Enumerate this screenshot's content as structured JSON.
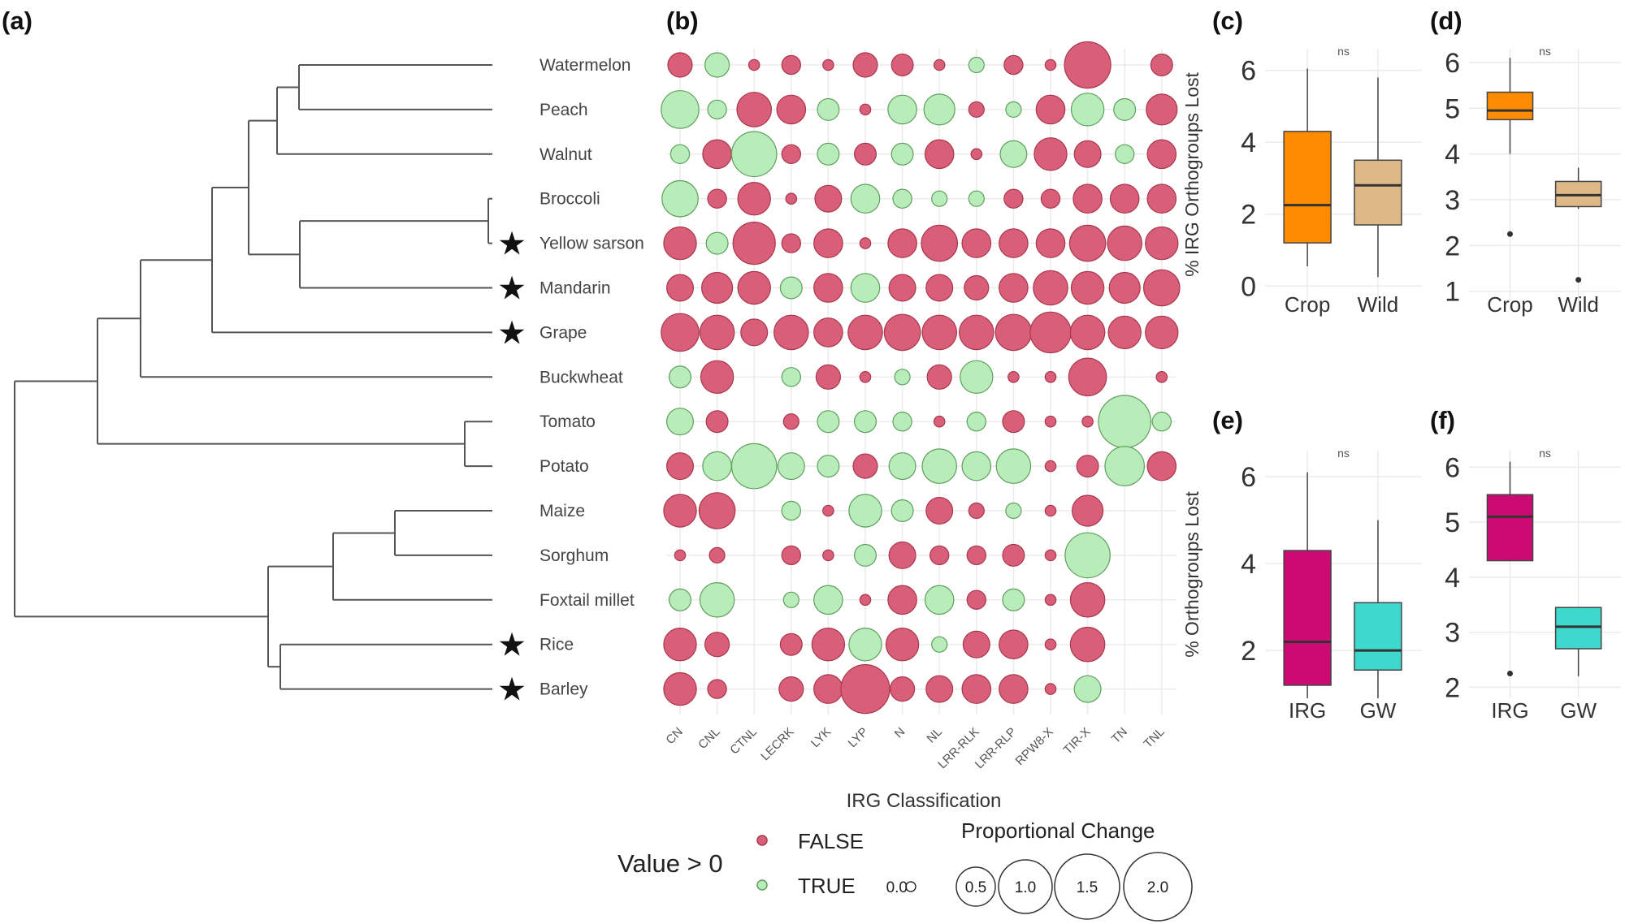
{
  "labels": {
    "a": "(a)",
    "b": "(b)",
    "c": "(c)",
    "d": "(d)",
    "e": "(e)",
    "f": "(f)"
  },
  "colors": {
    "false_fill": "#d95f78",
    "false_stroke": "#a8384f",
    "true_fill": "#b8ecb8",
    "true_stroke": "#5f9f5f",
    "crop": "#ff8c00",
    "wild": "#deb887",
    "irg": "#cc0a73",
    "gw": "#3dd9cf",
    "tree": "#555555"
  },
  "chart_data": [
    {
      "type": "dendrogram",
      "panel": "(a)",
      "leaves": [
        "Watermelon",
        "Peach",
        "Walnut",
        "Broccoli",
        "Yellow sarson",
        "Mandarin",
        "Grape",
        "Buckwheat",
        "Tomato",
        "Potato",
        "Maize",
        "Sorghum",
        "Foxtail millet",
        "Rice",
        "Barley"
      ],
      "starred": [
        "Yellow sarson",
        "Mandarin",
        "Grape",
        "Rice",
        "Barley"
      ],
      "star_symbol": "★"
    },
    {
      "type": "scatter",
      "panel": "(b)",
      "xlabel": "IRG Classification",
      "categories": [
        "CN",
        "CNL",
        "CTNL",
        "LECRK",
        "LYK",
        "LYP",
        "N",
        "NL",
        "LRR-RLK",
        "LRR-RLP",
        "RPW8-X",
        "TIR-X",
        "TN",
        "TNL"
      ],
      "rows": [
        "Watermelon",
        "Peach",
        "Walnut",
        "Broccoli",
        "Yellow sarson",
        "Mandarin",
        "Grape",
        "Buckwheat",
        "Tomato",
        "Potato",
        "Maize",
        "Sorghum",
        "Foxtail millet",
        "Rice",
        "Barley"
      ],
      "size_legend_title": "Proportional Change",
      "size_legend": [
        {
          "label": "0.0",
          "value": 0.0
        },
        {
          "label": "0.5",
          "value": 0.5
        },
        {
          "label": "1.0",
          "value": 1.0
        },
        {
          "label": "1.5",
          "value": 1.5
        },
        {
          "label": "2.0",
          "value": 2.0
        }
      ],
      "color_legend_title": "Value > 0",
      "color_legend": [
        "FALSE",
        "TRUE"
      ],
      "points": [
        [
          "F0.25",
          "T0.25",
          "F0.05",
          "F0.15",
          "F0.05",
          "F0.25",
          "F0.2",
          "F0.05",
          "T0.1",
          "F0.15",
          "F0.05",
          "F0.9",
          "",
          "F0.2"
        ],
        [
          "T0.6",
          "T0.15",
          "F0.5",
          "F0.35",
          "T0.2",
          "F0.05",
          "T0.35",
          "T0.4",
          "F0.1",
          "T0.1",
          "F0.35",
          "T0.45",
          "T0.2",
          "F0.4"
        ],
        [
          "T0.15",
          "F0.35",
          "T0.85",
          "F0.15",
          "T0.2",
          "F0.2",
          "T0.2",
          "F0.35",
          "F0.05",
          "T0.3",
          "F0.45",
          "F0.3",
          "T0.15",
          "F0.35"
        ],
        [
          "T0.55",
          "F0.15",
          "F0.45",
          "F0.05",
          "F0.3",
          "T0.35",
          "T0.15",
          "T0.1",
          "T0.1",
          "F0.15",
          "F0.15",
          "F0.35",
          "F0.35",
          "F0.35"
        ],
        [
          "F0.45",
          "T0.2",
          "F0.75",
          "F0.15",
          "F0.35",
          "F0.05",
          "F0.35",
          "F0.55",
          "F0.35",
          "F0.35",
          "F0.35",
          "F0.55",
          "F0.5",
          "F0.45"
        ],
        [
          "F0.3",
          "F0.4",
          "F0.45",
          "T0.2",
          "F0.35",
          "T0.35",
          "F0.3",
          "F0.3",
          "F0.25",
          "F0.35",
          "F0.5",
          "F0.45",
          "F0.4",
          "F0.55"
        ],
        [
          "F0.6",
          "F0.5",
          "F0.3",
          "F0.5",
          "F0.35",
          "F0.5",
          "F0.55",
          "F0.5",
          "F0.5",
          "F0.55",
          "F0.7",
          "F0.5",
          "F0.45",
          "F0.45"
        ],
        [
          "T0.2",
          "F0.45",
          "",
          "T0.15",
          "F0.25",
          "F0.05",
          "T0.1",
          "F0.25",
          "T0.45",
          "F0.05",
          "F0.05",
          "F0.6",
          "",
          "F0.05"
        ],
        [
          "T0.3",
          "F0.2",
          "",
          "F0.1",
          "T0.2",
          "T0.2",
          "T0.15",
          "F0.05",
          "T0.15",
          "F0.2",
          "F0.05",
          "F0.05",
          "T1.15",
          "T0.15"
        ],
        [
          "F0.3",
          "T0.35",
          "T0.85",
          "T0.3",
          "T0.2",
          "F0.25",
          "T0.3",
          "T0.5",
          "T0.35",
          "T0.5",
          "F0.05",
          "F0.2",
          "T0.65",
          "F0.35"
        ],
        [
          "F0.45",
          "F0.55",
          "",
          "T0.15",
          "F0.05",
          "T0.45",
          "T0.2",
          "F0.3",
          "F0.1",
          "T0.1",
          "F0.05",
          "F0.4",
          "",
          ""
        ],
        [
          "F0.05",
          "F0.1",
          "",
          "F0.15",
          "F0.05",
          "T0.2",
          "F0.3",
          "F0.15",
          "F0.15",
          "F0.2",
          "F0.05",
          "T0.85",
          "",
          ""
        ],
        [
          "T0.2",
          "T0.5",
          "",
          "T0.1",
          "T0.35",
          "F0.05",
          "F0.35",
          "T0.35",
          "F0.15",
          "T0.2",
          "F0.05",
          "F0.5",
          "",
          ""
        ],
        [
          "F0.45",
          "F0.25",
          "",
          "F0.2",
          "F0.45",
          "T0.45",
          "F0.45",
          "T0.1",
          "F0.3",
          "F0.35",
          "F0.05",
          "F0.5",
          "",
          ""
        ],
        [
          "F0.45",
          "F0.15",
          "",
          "F0.25",
          "F0.35",
          "F1.0",
          "F0.25",
          "F0.3",
          "F0.35",
          "F0.35",
          "F0.05",
          "T0.3",
          "",
          ""
        ]
      ]
    },
    {
      "type": "box",
      "panel": "(c)",
      "ylabel": "% IRG Orthogroups Lost",
      "ylim": [
        -0.4,
        6.6
      ],
      "yticks": [
        0,
        2,
        4,
        6
      ],
      "categories": [
        "Crop",
        "Wild"
      ],
      "annotation": "ns",
      "boxes": [
        {
          "name": "Crop",
          "min": 0.55,
          "q1": 1.2,
          "median": 2.25,
          "q3": 4.3,
          "max": 6.05,
          "outliers": [],
          "color": "#ff8c00"
        },
        {
          "name": "Wild",
          "min": 0.25,
          "q1": 1.7,
          "median": 2.8,
          "q3": 3.5,
          "max": 5.8,
          "outliers": [],
          "color": "#deb887"
        }
      ]
    },
    {
      "type": "box",
      "panel": "(d)",
      "ylabel": "",
      "ylim": [
        0.8,
        6.3
      ],
      "yticks": [
        1,
        2,
        3,
        4,
        5,
        6
      ],
      "categories": [
        "Crop",
        "Wild"
      ],
      "annotation": "ns",
      "boxes": [
        {
          "name": "Crop",
          "min": 4.0,
          "q1": 4.75,
          "median": 4.95,
          "q3": 5.35,
          "max": 6.1,
          "outliers": [
            2.25
          ],
          "color": "#ff8c00"
        },
        {
          "name": "Wild",
          "min": 2.8,
          "q1": 2.85,
          "median": 3.1,
          "q3": 3.4,
          "max": 3.7,
          "outliers": [
            1.25
          ],
          "color": "#deb887"
        }
      ]
    },
    {
      "type": "box",
      "panel": "(e)",
      "ylabel": "% Orthogroups Lost",
      "ylim": [
        0.9,
        6.6
      ],
      "yticks": [
        2,
        4,
        6
      ],
      "categories": [
        "IRG",
        "GW"
      ],
      "annotation": "ns",
      "boxes": [
        {
          "name": "IRG",
          "min": 0.9,
          "q1": 1.2,
          "median": 2.2,
          "q3": 4.3,
          "max": 6.1,
          "outliers": [],
          "color": "#cc0a73"
        },
        {
          "name": "GW",
          "min": 0.9,
          "q1": 1.55,
          "median": 2.0,
          "q3": 3.1,
          "max": 5.0,
          "outliers": [],
          "color": "#3dd9cf"
        }
      ]
    },
    {
      "type": "box",
      "panel": "(f)",
      "ylabel": "",
      "ylim": [
        1.8,
        6.3
      ],
      "yticks": [
        2,
        3,
        4,
        5,
        6
      ],
      "categories": [
        "IRG",
        "GW"
      ],
      "annotation": "ns",
      "boxes": [
        {
          "name": "IRG",
          "min": 4.3,
          "q1": 4.3,
          "median": 5.1,
          "q3": 5.5,
          "max": 6.1,
          "outliers": [
            2.25
          ],
          "color": "#cc0a73"
        },
        {
          "name": "GW",
          "min": 2.2,
          "q1": 2.7,
          "median": 3.1,
          "q3": 3.45,
          "max": 3.45,
          "outliers": [],
          "color": "#3dd9cf"
        }
      ]
    }
  ]
}
